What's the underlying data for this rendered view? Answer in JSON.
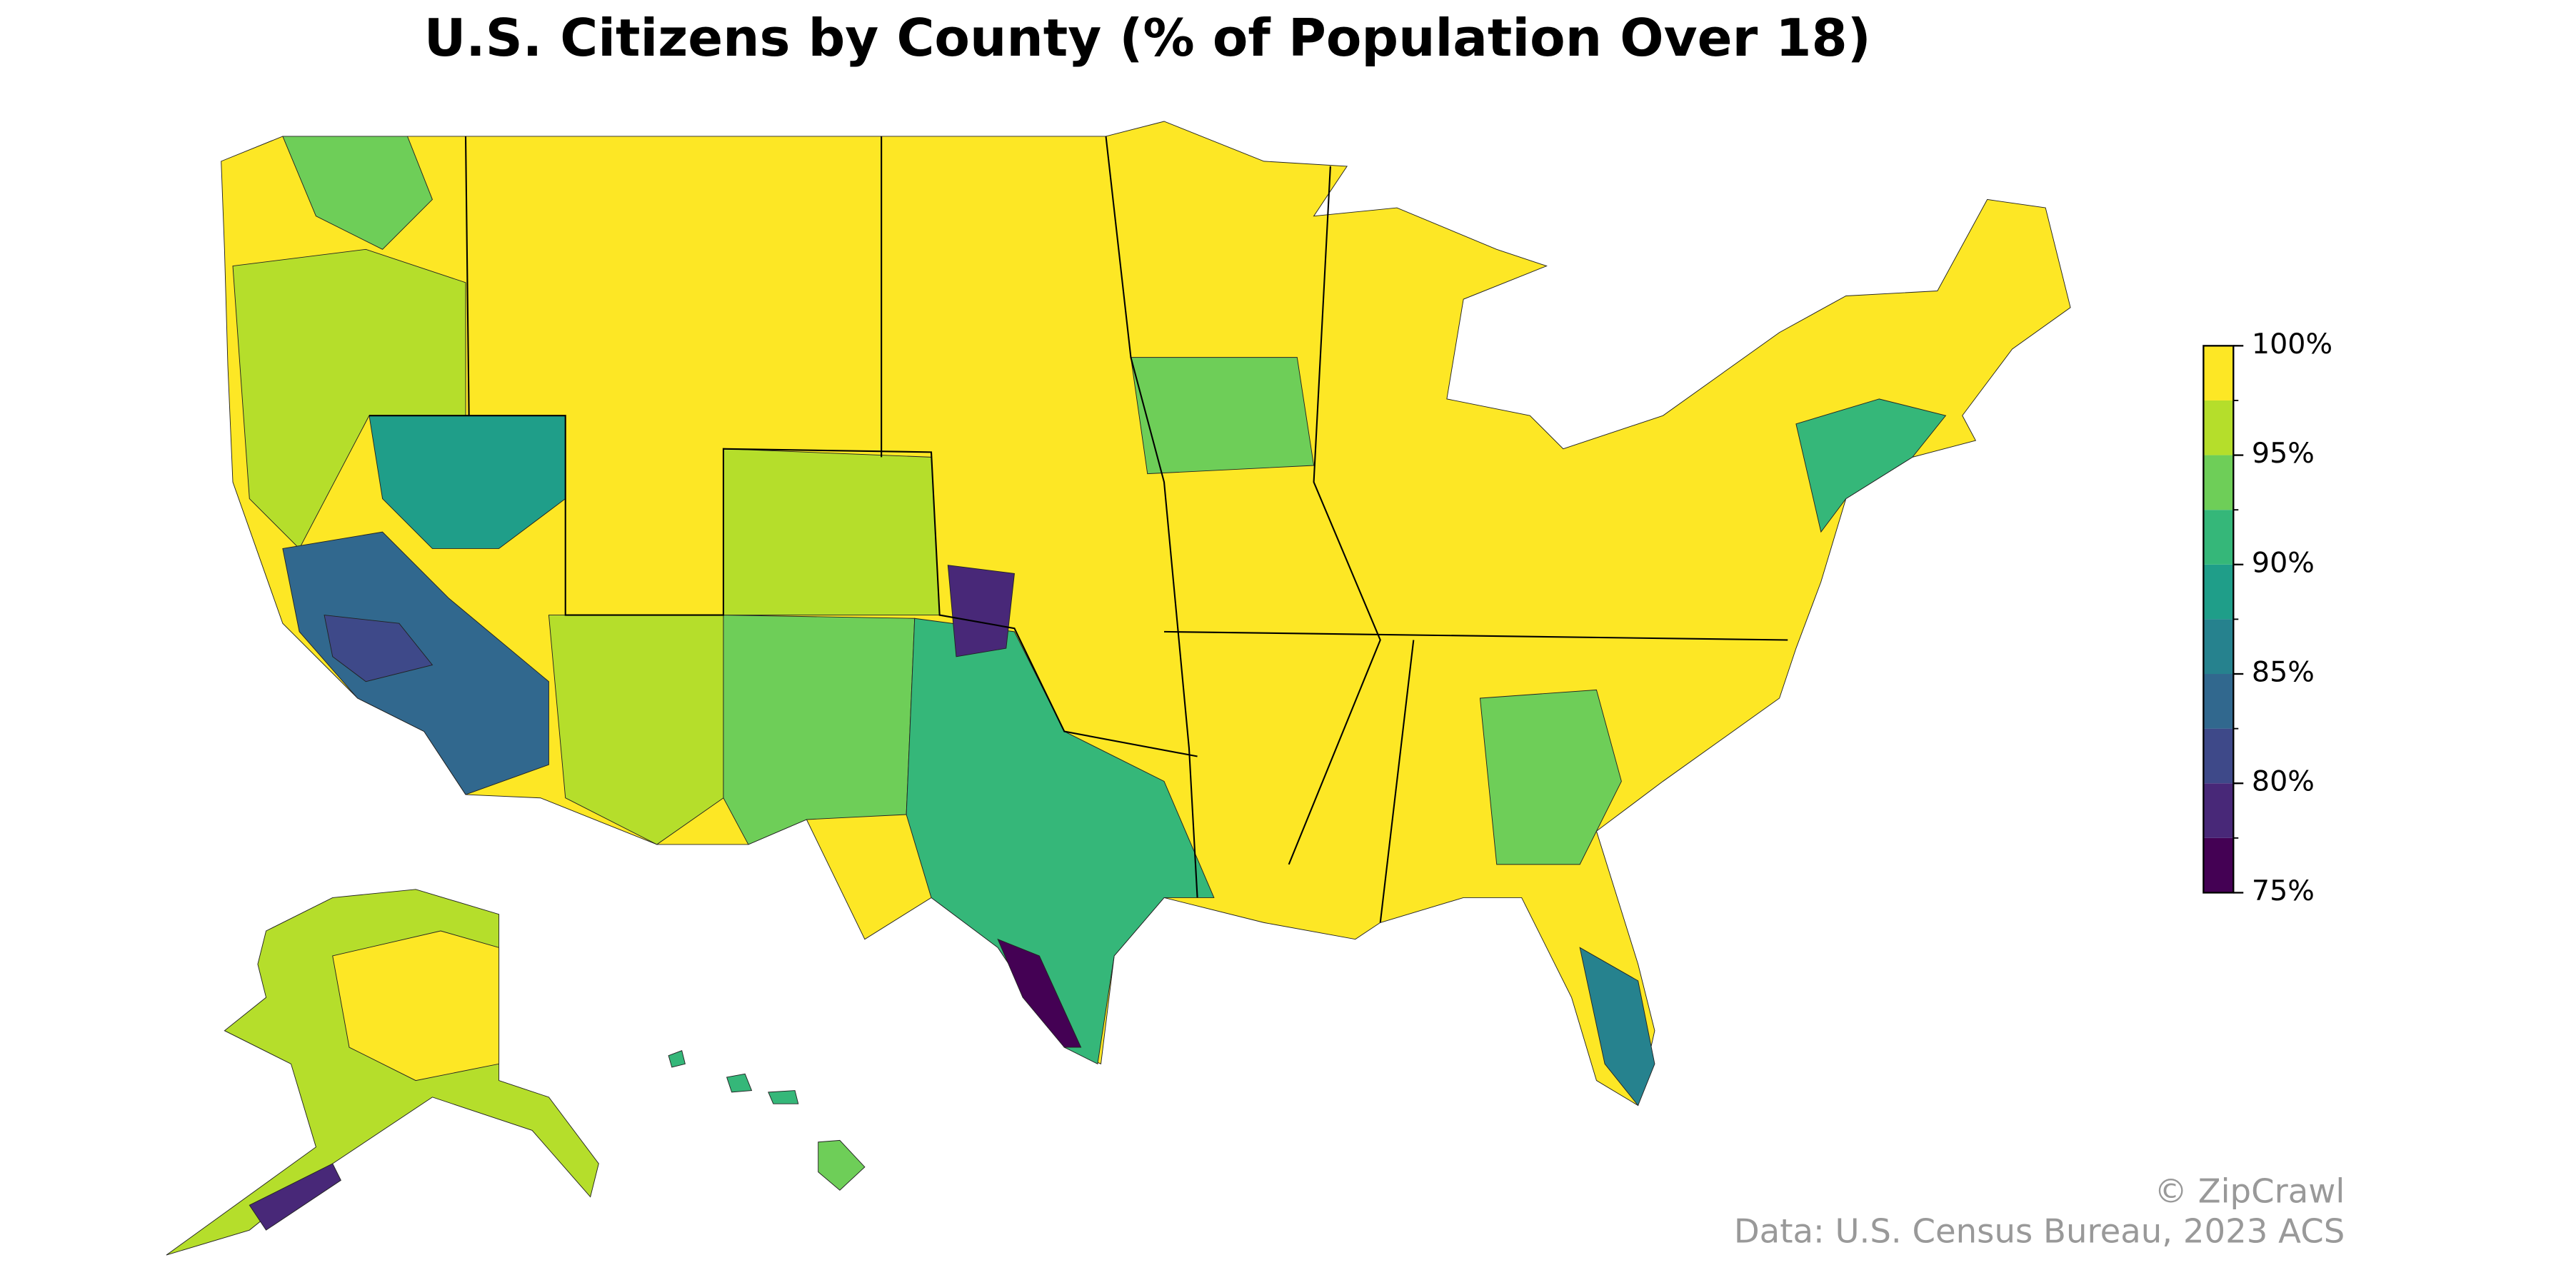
{
  "title": "U.S. Citizens by County (% of Population Over 18)",
  "colorbar": {
    "lim": [
      75,
      100
    ],
    "bins": [
      75,
      77.5,
      80,
      82.5,
      85,
      87.5,
      90,
      92.5,
      95,
      97.5,
      100
    ],
    "colors": [
      "#440154",
      "#482878",
      "#3e4989",
      "#31688e",
      "#26828e",
      "#1f9e89",
      "#35b779",
      "#6ece58",
      "#b5de2b",
      "#fde725"
    ],
    "ticks": [
      {
        "value": 75,
        "label": "75%"
      },
      {
        "value": 80,
        "label": "80%"
      },
      {
        "value": 85,
        "label": "85%"
      },
      {
        "value": 90,
        "label": "90%"
      },
      {
        "value": 95,
        "label": "95%"
      },
      {
        "value": 100,
        "label": "100%"
      }
    ]
  },
  "credit": "© ZipCrawl",
  "source": "Data: U.S. Census Bureau, 2023 ACS"
}
